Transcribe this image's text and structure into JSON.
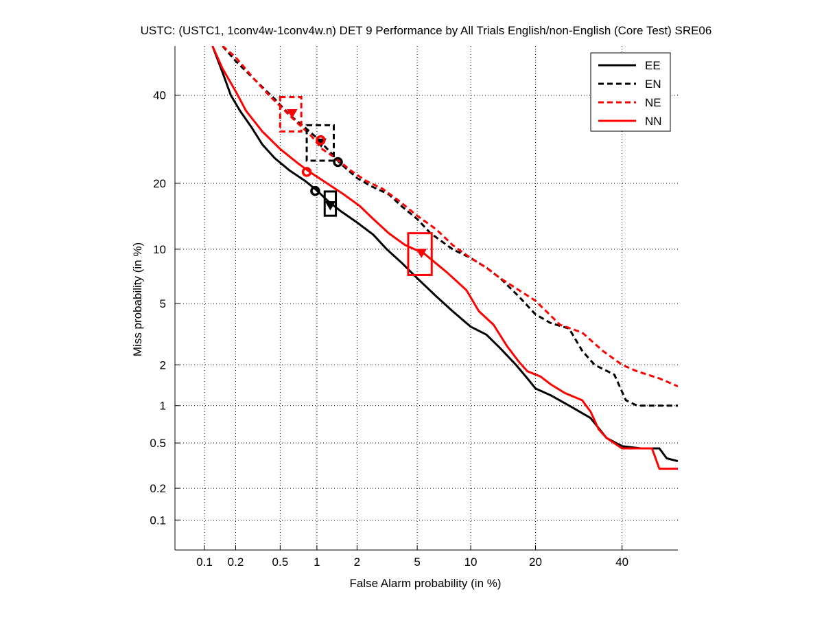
{
  "chart_data": {
    "type": "line",
    "title": "USTC: (USTC1, 1conv4w-1conv4w.n) DET 9 Performance by All Trials English/non-English (Core Test) SRE06",
    "xlabel": "False Alarm probability (in %)",
    "ylabel": "Miss probability (in %)",
    "x_scale": "probit",
    "y_scale": "probit",
    "xlim": [
      0.05,
      55
    ],
    "ylim": [
      0.05,
      53
    ],
    "grid": true,
    "grid_style": "dotted",
    "legend_position": "top-right",
    "x_ticks": [
      {
        "value": 0.1,
        "label": "0.1"
      },
      {
        "value": 0.2,
        "label": "0.2"
      },
      {
        "value": 0.5,
        "label": "0.5"
      },
      {
        "value": 1,
        "label": "1"
      },
      {
        "value": 2,
        "label": "2"
      },
      {
        "value": 5,
        "label": "5"
      },
      {
        "value": 10,
        "label": "10"
      },
      {
        "value": 20,
        "label": "20"
      },
      {
        "value": 40,
        "label": "40"
      }
    ],
    "y_ticks": [
      {
        "value": 0.1,
        "label": "0.1"
      },
      {
        "value": 0.2,
        "label": "0.2"
      },
      {
        "value": 0.5,
        "label": "0.5"
      },
      {
        "value": 1,
        "label": "1"
      },
      {
        "value": 2,
        "label": "2"
      },
      {
        "value": 5,
        "label": "5"
      },
      {
        "value": 10,
        "label": "10"
      },
      {
        "value": 20,
        "label": "20"
      },
      {
        "value": 40,
        "label": "40"
      }
    ],
    "series": [
      {
        "name": "EE",
        "color": "#000000",
        "dash": "solid",
        "points": [
          [
            0.12,
            53
          ],
          [
            0.15,
            46
          ],
          [
            0.18,
            40
          ],
          [
            0.22,
            36
          ],
          [
            0.28,
            32
          ],
          [
            0.35,
            28
          ],
          [
            0.45,
            25
          ],
          [
            0.6,
            22.5
          ],
          [
            0.8,
            20.5
          ],
          [
            1.0,
            18.7
          ],
          [
            1.2,
            17
          ],
          [
            1.5,
            15.3
          ],
          [
            2.0,
            13.5
          ],
          [
            2.6,
            11.8
          ],
          [
            3.2,
            10
          ],
          [
            4.0,
            8.5
          ],
          [
            5.0,
            7
          ],
          [
            6.5,
            5.5
          ],
          [
            8.0,
            4.5
          ],
          [
            10.0,
            3.6
          ],
          [
            12.0,
            3.2
          ],
          [
            14.0,
            2.6
          ],
          [
            16.5,
            2.0
          ],
          [
            18.5,
            1.6
          ],
          [
            20.0,
            1.35
          ],
          [
            23.0,
            1.2
          ],
          [
            27.0,
            1.0
          ],
          [
            32.0,
            0.8
          ],
          [
            36.0,
            0.55
          ],
          [
            40.0,
            0.47
          ],
          [
            45.0,
            0.45
          ],
          [
            50.0,
            0.45
          ],
          [
            52.0,
            0.37
          ],
          [
            55.0,
            0.35
          ]
        ],
        "markers": {
          "min_dcf": [
            0.97,
            18.6
          ],
          "act_dcf": [
            1.27,
            16.2
          ]
        },
        "act_box": {
          "x": [
            1.15,
            1.4
          ],
          "y": [
            14.5,
            18.5
          ]
        }
      },
      {
        "name": "EN",
        "color": "#000000",
        "dash": "dashed",
        "points": [
          [
            0.15,
            53
          ],
          [
            0.2,
            49
          ],
          [
            0.3,
            44
          ],
          [
            0.45,
            39
          ],
          [
            0.6,
            35
          ],
          [
            0.8,
            32
          ],
          [
            1.0,
            29.5
          ],
          [
            1.3,
            26
          ],
          [
            1.5,
            24
          ],
          [
            2.0,
            21
          ],
          [
            2.5,
            19.5
          ],
          [
            3.3,
            18
          ],
          [
            4.0,
            16
          ],
          [
            5.0,
            14
          ],
          [
            6.0,
            12
          ],
          [
            8.0,
            10
          ],
          [
            10.0,
            9
          ],
          [
            12.0,
            8
          ],
          [
            14.0,
            7
          ],
          [
            17.0,
            5.5
          ],
          [
            20.0,
            4.3
          ],
          [
            23.0,
            3.8
          ],
          [
            27.0,
            3.5
          ],
          [
            30.0,
            2.5
          ],
          [
            33.0,
            2.0
          ],
          [
            38.0,
            1.7
          ],
          [
            41.0,
            1.1
          ],
          [
            44.0,
            1.0
          ],
          [
            50.0,
            1.0
          ],
          [
            55.0,
            1.0
          ]
        ],
        "markers": {
          "min_dcf": [
            1.45,
            24.2
          ],
          "act_dcf": [
            1.08,
            28.5
          ]
        },
        "act_box": {
          "x": [
            0.83,
            1.35
          ],
          "y": [
            24.5,
            32.5
          ]
        }
      },
      {
        "name": "NE",
        "color": "#ff0000",
        "dash": "dashed",
        "points": [
          [
            0.15,
            53
          ],
          [
            0.2,
            50
          ],
          [
            0.3,
            44
          ],
          [
            0.4,
            40
          ],
          [
            0.55,
            36
          ],
          [
            0.7,
            33
          ],
          [
            0.9,
            30
          ],
          [
            1.1,
            27
          ],
          [
            1.4,
            25
          ],
          [
            1.8,
            22.5
          ],
          [
            2.3,
            20.5
          ],
          [
            3.0,
            19
          ],
          [
            3.8,
            17
          ],
          [
            5.0,
            14.5
          ],
          [
            6.5,
            12.5
          ],
          [
            8.0,
            10.5
          ],
          [
            10.0,
            9
          ],
          [
            12.0,
            8
          ],
          [
            14.0,
            7
          ],
          [
            17.0,
            6
          ],
          [
            20.0,
            5.2
          ],
          [
            25.0,
            3.7
          ],
          [
            30.0,
            3.3
          ],
          [
            35.0,
            2.5
          ],
          [
            40.0,
            2.0
          ],
          [
            44.0,
            1.8
          ],
          [
            50.0,
            1.6
          ],
          [
            55.0,
            1.4
          ]
        ],
        "markers": {
          "min_dcf": [
            1.07,
            29.0
          ],
          "act_dcf": [
            0.63,
            35.5
          ]
        },
        "act_box": {
          "x": [
            0.5,
            0.75
          ],
          "y": [
            31.0,
            39.5
          ]
        }
      },
      {
        "name": "NN",
        "color": "#ff0000",
        "dash": "solid",
        "points": [
          [
            0.12,
            53
          ],
          [
            0.15,
            47
          ],
          [
            0.2,
            41
          ],
          [
            0.25,
            36
          ],
          [
            0.35,
            31
          ],
          [
            0.5,
            27
          ],
          [
            0.7,
            24
          ],
          [
            0.9,
            22
          ],
          [
            1.2,
            20
          ],
          [
            1.6,
            18
          ],
          [
            2.1,
            16
          ],
          [
            2.6,
            14
          ],
          [
            3.3,
            12
          ],
          [
            4.2,
            10.5
          ],
          [
            5.5,
            9.5
          ],
          [
            7.5,
            7.5
          ],
          [
            9.5,
            6
          ],
          [
            11.0,
            4.5
          ],
          [
            13.0,
            3.7
          ],
          [
            15.0,
            2.7
          ],
          [
            17.0,
            2.1
          ],
          [
            18.5,
            1.8
          ],
          [
            21.0,
            1.65
          ],
          [
            23.0,
            1.45
          ],
          [
            26.0,
            1.25
          ],
          [
            30.0,
            1.1
          ],
          [
            32.0,
            0.9
          ],
          [
            34.0,
            0.65
          ],
          [
            36.0,
            0.55
          ],
          [
            40.0,
            0.45
          ],
          [
            45.0,
            0.45
          ],
          [
            48.0,
            0.45
          ],
          [
            50.0,
            0.3
          ],
          [
            55.0,
            0.3
          ]
        ],
        "markers": {
          "min_dcf": [
            0.83,
            22.2
          ],
          "act_dcf": [
            5.3,
            9.6
          ]
        },
        "act_box": {
          "x": [
            4.4,
            6.1
          ],
          "y": [
            7.3,
            12.0
          ]
        }
      }
    ]
  }
}
